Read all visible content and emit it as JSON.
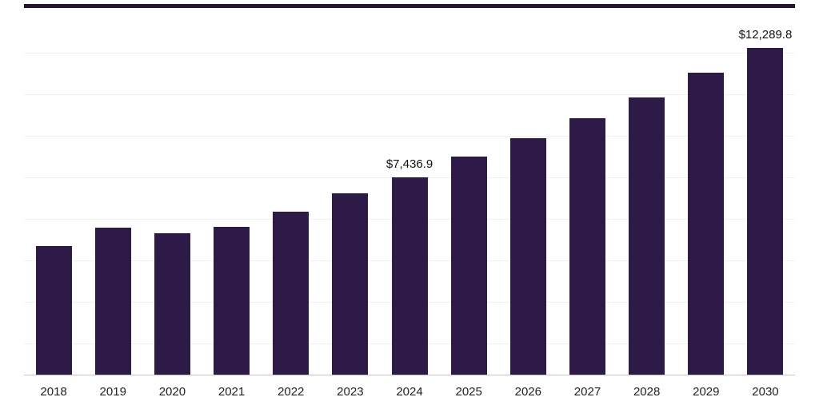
{
  "chart": {
    "bar_color": "#2e1a47",
    "top_border_color": "#251536",
    "grid_color": "#f1f1f4",
    "axis_line_color": "#c4c4c4",
    "label_color": "#111111"
  },
  "chart_data": {
    "type": "bar",
    "title": "",
    "xlabel": "",
    "ylabel": "",
    "categories": [
      "2018",
      "2019",
      "2020",
      "2021",
      "2022",
      "2023",
      "2024",
      "2025",
      "2026",
      "2027",
      "2028",
      "2029",
      "2030"
    ],
    "values": [
      4870,
      5560,
      5350,
      5580,
      6160,
      6850,
      7436.9,
      8220,
      8910,
      9660,
      10440,
      11360,
      12289.8
    ],
    "data_labels": {
      "2024": "$7,436.9",
      "2030": "$12,289.8"
    },
    "ylim": [
      0,
      13800
    ],
    "grid": "horizontal-faint",
    "legend": "none",
    "y_axis_ticks_visible": false
  }
}
